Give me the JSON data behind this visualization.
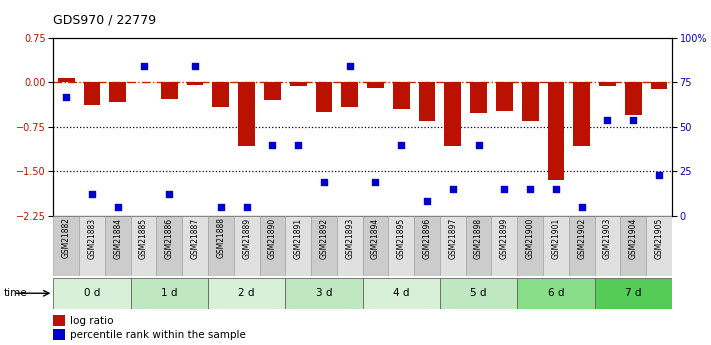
{
  "title": "GDS970 / 22779",
  "samples": [
    "GSM21882",
    "GSM21883",
    "GSM21884",
    "GSM21885",
    "GSM21886",
    "GSM21887",
    "GSM21888",
    "GSM21889",
    "GSM21890",
    "GSM21891",
    "GSM21892",
    "GSM21893",
    "GSM21894",
    "GSM21895",
    "GSM21896",
    "GSM21897",
    "GSM21898",
    "GSM21899",
    "GSM21900",
    "GSM21901",
    "GSM21902",
    "GSM21903",
    "GSM21904",
    "GSM21905"
  ],
  "log_ratio": [
    0.08,
    -0.38,
    -0.33,
    0.0,
    -0.28,
    -0.05,
    -0.42,
    -1.08,
    -0.3,
    -0.06,
    -0.5,
    -0.42,
    -0.09,
    -0.45,
    -0.65,
    -1.08,
    -0.52,
    -0.48,
    -0.65,
    -1.65,
    -1.08,
    -0.06,
    -0.55,
    -0.12
  ],
  "percentile_rank": [
    67,
    12,
    5,
    84,
    12,
    84,
    5,
    5,
    40,
    40,
    19,
    84,
    19,
    40,
    8,
    15,
    40,
    15,
    15,
    15,
    5,
    54,
    54,
    23
  ],
  "time_groups": [
    {
      "label": "0 d",
      "start": 0,
      "end": 3,
      "color": "#d8f0d8"
    },
    {
      "label": "1 d",
      "start": 3,
      "end": 6,
      "color": "#c0e8c0"
    },
    {
      "label": "2 d",
      "start": 6,
      "end": 9,
      "color": "#d8f0d8"
    },
    {
      "label": "3 d",
      "start": 9,
      "end": 12,
      "color": "#c0e8c0"
    },
    {
      "label": "4 d",
      "start": 12,
      "end": 15,
      "color": "#d8f0d8"
    },
    {
      "label": "5 d",
      "start": 15,
      "end": 18,
      "color": "#c0e8c0"
    },
    {
      "label": "6 d",
      "start": 18,
      "end": 21,
      "color": "#88dd88"
    },
    {
      "label": "7 d",
      "start": 21,
      "end": 24,
      "color": "#55cc55"
    }
  ],
  "bar_color": "#bb1100",
  "scatter_color": "#0000cc",
  "ylim_left": [
    -2.25,
    0.75
  ],
  "ylim_right": [
    0,
    100
  ],
  "yticks_left": [
    0.75,
    0.0,
    -0.75,
    -1.5,
    -2.25
  ],
  "yticks_right": [
    0,
    25,
    50,
    75,
    100
  ],
  "sample_col1": "#cccccc",
  "sample_col2": "#e0e0e0"
}
